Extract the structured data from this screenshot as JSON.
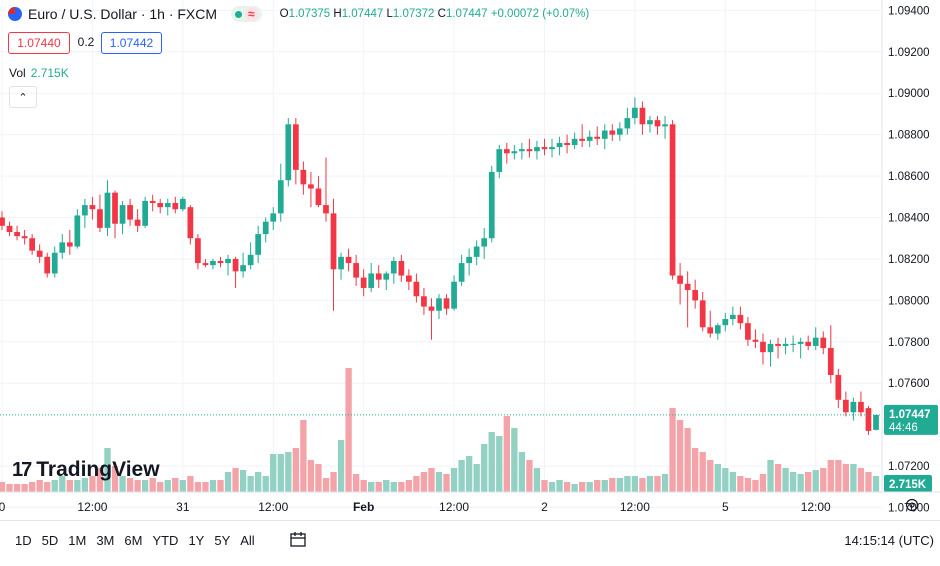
{
  "header": {
    "symbol_title": "Euro / U.S. Dollar · 1h · FXCM",
    "status_symbol": "≈",
    "ohlc": {
      "open_label": "O",
      "open": "1.07375",
      "high_label": "H",
      "high": "1.07447",
      "low_label": "L",
      "low": "1.07372",
      "close_label": "C",
      "close": "1.07447",
      "change": "+0.00072 (+0.07%)"
    }
  },
  "quote": {
    "bid": "1.07440",
    "spread": "0.2",
    "ask": "1.07442"
  },
  "volume": {
    "label": "Vol",
    "value": "2.715K"
  },
  "collapse_symbol": "⌃",
  "logo": {
    "mark": "17",
    "text": "TradingView"
  },
  "price_scale": {
    "last_price": "1.07447",
    "countdown": "44:46",
    "volume_tag": "2.715K"
  },
  "time_ranges": [
    "1D",
    "5D",
    "1M",
    "3M",
    "6M",
    "YTD",
    "1Y",
    "5Y",
    "All"
  ],
  "clock": "14:15:14 (UTC)",
  "colors": {
    "up": "#22ab94",
    "down": "#f23645",
    "up_vol": "#92d1c4",
    "down_vol": "#f4a3a8",
    "text": "#131722",
    "grid": "#f0f3fa"
  },
  "chart_data": {
    "type": "candlestick",
    "symbol": "Euro / U.S. Dollar",
    "interval": "1h",
    "source": "FXCM",
    "ylim": [
      1.07075,
      1.0945
    ],
    "y_ticks": [
      "1.09400",
      "1.09200",
      "1.09000",
      "1.08800",
      "1.08600",
      "1.08400",
      "1.08200",
      "1.08000",
      "1.07800",
      "1.07600",
      "1.07200",
      "1.07000"
    ],
    "x_ticks": [
      {
        "label": "0",
        "index": 0
      },
      {
        "label": "12:00",
        "index": 12
      },
      {
        "label": "31",
        "index": 24
      },
      {
        "label": "12:00",
        "index": 36
      },
      {
        "label": "Feb",
        "index": 48
      },
      {
        "label": "12:00",
        "index": 60
      },
      {
        "label": "2",
        "index": 72
      },
      {
        "label": "12:00",
        "index": 84
      },
      {
        "label": "5",
        "index": 96
      },
      {
        "label": "12:00",
        "index": 108
      }
    ],
    "ohlc": [
      [
        1.084,
        1.0843,
        1.0834,
        1.0836
      ],
      [
        1.0836,
        1.0838,
        1.0831,
        1.0833
      ],
      [
        1.0833,
        1.0836,
        1.0829,
        1.0831
      ],
      [
        1.0831,
        1.0834,
        1.0827,
        1.083
      ],
      [
        1.083,
        1.0832,
        1.0822,
        1.0824
      ],
      [
        1.0824,
        1.0827,
        1.0818,
        1.0821
      ],
      [
        1.0821,
        1.0823,
        1.0811,
        1.0813
      ],
      [
        1.0813,
        1.0826,
        1.0811,
        1.0823
      ],
      [
        1.0823,
        1.0832,
        1.082,
        1.0828
      ],
      [
        1.0828,
        1.0834,
        1.0822,
        1.0826
      ],
      [
        1.0826,
        1.0844,
        1.0825,
        1.0841
      ],
      [
        1.0841,
        1.0849,
        1.0835,
        1.0846
      ],
      [
        1.0846,
        1.085,
        1.0839,
        1.0844
      ],
      [
        1.0844,
        1.0851,
        1.0833,
        1.0835
      ],
      [
        1.0835,
        1.0858,
        1.0831,
        1.0852
      ],
      [
        1.0852,
        1.0853,
        1.083,
        1.0837
      ],
      [
        1.0837,
        1.0848,
        1.0832,
        1.0846
      ],
      [
        1.0846,
        1.0849,
        1.0836,
        1.0839
      ],
      [
        1.0839,
        1.0844,
        1.0833,
        1.0836
      ],
      [
        1.0836,
        1.085,
        1.0835,
        1.0848
      ],
      [
        1.0848,
        1.0851,
        1.0843,
        1.0847
      ],
      [
        1.0847,
        1.0849,
        1.0842,
        1.0845
      ],
      [
        1.0845,
        1.0849,
        1.0841,
        1.0847
      ],
      [
        1.0847,
        1.085,
        1.0842,
        1.0844
      ],
      [
        1.0844,
        1.085,
        1.0843,
        1.0849
      ],
      [
        1.0845,
        1.0846,
        1.0827,
        1.083
      ],
      [
        1.083,
        1.0832,
        1.0815,
        1.0818
      ],
      [
        1.0818,
        1.082,
        1.0816,
        1.0817
      ],
      [
        1.0817,
        1.082,
        1.0815,
        1.0819
      ],
      [
        1.0819,
        1.0821,
        1.0816,
        1.0818
      ],
      [
        1.0818,
        1.0822,
        1.0812,
        1.082
      ],
      [
        1.082,
        1.0821,
        1.0806,
        1.0814
      ],
      [
        1.0814,
        1.0823,
        1.0811,
        1.0817
      ],
      [
        1.0817,
        1.0828,
        1.0815,
        1.0822
      ],
      [
        1.0822,
        1.0836,
        1.0818,
        1.0832
      ],
      [
        1.0832,
        1.084,
        1.0828,
        1.0838
      ],
      [
        1.0838,
        1.0845,
        1.0834,
        1.0842
      ],
      [
        1.0842,
        1.0866,
        1.0838,
        1.0858
      ],
      [
        1.0858,
        1.0888,
        1.0855,
        1.0885
      ],
      [
        1.0885,
        1.0888,
        1.0856,
        1.0863
      ],
      [
        1.0863,
        1.0867,
        1.0851,
        1.0856
      ],
      [
        1.0856,
        1.0862,
        1.0845,
        1.0854
      ],
      [
        1.0854,
        1.086,
        1.0845,
        1.0846
      ],
      [
        1.0846,
        1.0869,
        1.0838,
        1.0842
      ],
      [
        1.0842,
        1.0849,
        1.0795,
        1.0815
      ],
      [
        1.0815,
        1.0823,
        1.081,
        1.0821
      ],
      [
        1.0821,
        1.0825,
        1.0814,
        1.0818
      ],
      [
        1.0818,
        1.0822,
        1.0807,
        1.0811
      ],
      [
        1.0811,
        1.0815,
        1.0802,
        1.0806
      ],
      [
        1.0806,
        1.0818,
        1.0804,
        1.0813
      ],
      [
        1.0813,
        1.0817,
        1.0806,
        1.081
      ],
      [
        1.081,
        1.0814,
        1.0805,
        1.0813
      ],
      [
        1.0813,
        1.0821,
        1.0808,
        1.0819
      ],
      [
        1.0819,
        1.0822,
        1.0809,
        1.0812
      ],
      [
        1.0812,
        1.0815,
        1.0805,
        1.0809
      ],
      [
        1.0809,
        1.0813,
        1.0799,
        1.0802
      ],
      [
        1.0802,
        1.0806,
        1.0793,
        1.0797
      ],
      [
        1.0797,
        1.0801,
        1.0781,
        1.0795
      ],
      [
        1.0795,
        1.0803,
        1.0791,
        1.0801
      ],
      [
        1.0801,
        1.0803,
        1.0793,
        1.0796
      ],
      [
        1.0796,
        1.0812,
        1.0795,
        1.0809
      ],
      [
        1.0809,
        1.0822,
        1.0807,
        1.0818
      ],
      [
        1.0818,
        1.0825,
        1.0812,
        1.0821
      ],
      [
        1.0821,
        1.0829,
        1.0817,
        1.0826
      ],
      [
        1.0826,
        1.0835,
        1.082,
        1.083
      ],
      [
        1.083,
        1.0865,
        1.0828,
        1.0862
      ],
      [
        1.0862,
        1.0875,
        1.0859,
        1.0873
      ],
      [
        1.0873,
        1.0876,
        1.0866,
        1.0871
      ],
      [
        1.0871,
        1.0875,
        1.0868,
        1.0872
      ],
      [
        1.0872,
        1.0876,
        1.0868,
        1.0873
      ],
      [
        1.0873,
        1.0878,
        1.0869,
        1.0872
      ],
      [
        1.0872,
        1.0877,
        1.0868,
        1.0874
      ],
      [
        1.0874,
        1.0878,
        1.087,
        1.0873
      ],
      [
        1.0873,
        1.0878,
        1.0869,
        1.0874
      ],
      [
        1.0874,
        1.0879,
        1.087,
        1.0876
      ],
      [
        1.0876,
        1.088,
        1.0871,
        1.0875
      ],
      [
        1.0875,
        1.0881,
        1.0873,
        1.0878
      ],
      [
        1.0878,
        1.0885,
        1.0874,
        1.0877
      ],
      [
        1.0877,
        1.0882,
        1.0874,
        1.0879
      ],
      [
        1.0879,
        1.0884,
        1.0875,
        1.0878
      ],
      [
        1.0878,
        1.0885,
        1.0873,
        1.0882
      ],
      [
        1.0882,
        1.0885,
        1.0877,
        1.088
      ],
      [
        1.088,
        1.0886,
        1.0877,
        1.0883
      ],
      [
        1.0883,
        1.0893,
        1.088,
        1.0888
      ],
      [
        1.0888,
        1.0898,
        1.0885,
        1.0893
      ],
      [
        1.0893,
        1.0896,
        1.088,
        1.0885
      ],
      [
        1.0885,
        1.0889,
        1.0881,
        1.0887
      ],
      [
        1.0887,
        1.0889,
        1.088,
        1.0884
      ],
      [
        1.0884,
        1.0889,
        1.0878,
        1.0885
      ],
      [
        1.0885,
        1.0887,
        1.081,
        1.0812
      ],
      [
        1.0812,
        1.0818,
        1.0798,
        1.0808
      ],
      [
        1.0808,
        1.0814,
        1.0787,
        1.0805
      ],
      [
        1.0805,
        1.081,
        1.0796,
        1.08
      ],
      [
        1.08,
        1.0804,
        1.0785,
        1.0787
      ],
      [
        1.0787,
        1.0795,
        1.0782,
        1.0784
      ],
      [
        1.0784,
        1.0789,
        1.0781,
        1.0788
      ],
      [
        1.0788,
        1.0794,
        1.0785,
        1.0791
      ],
      [
        1.0791,
        1.0797,
        1.0788,
        1.0793
      ],
      [
        1.0793,
        1.0797,
        1.0786,
        1.0789
      ],
      [
        1.0789,
        1.0792,
        1.0778,
        1.0781
      ],
      [
        1.0781,
        1.0786,
        1.0777,
        1.078
      ],
      [
        1.078,
        1.0784,
        1.0769,
        1.0775
      ],
      [
        1.0775,
        1.0781,
        1.0768,
        1.0779
      ],
      [
        1.0779,
        1.0782,
        1.0772,
        1.0778
      ],
      [
        1.0778,
        1.0782,
        1.0774,
        1.0779
      ],
      [
        1.0779,
        1.0783,
        1.0775,
        1.0779
      ],
      [
        1.0779,
        1.0782,
        1.0772,
        1.078
      ],
      [
        1.078,
        1.0783,
        1.0776,
        1.0778
      ],
      [
        1.0778,
        1.0787,
        1.0776,
        1.0782
      ],
      [
        1.0782,
        1.0785,
        1.0774,
        1.0777
      ],
      [
        1.0777,
        1.0788,
        1.076,
        1.0764
      ],
      [
        1.0764,
        1.0767,
        1.0748,
        1.0752
      ],
      [
        1.0752,
        1.0756,
        1.0744,
        1.0746
      ],
      [
        1.0746,
        1.0753,
        1.0742,
        1.0751
      ],
      [
        1.0751,
        1.0756,
        1.0744,
        1.0746
      ],
      [
        1.0748,
        1.0749,
        1.0735,
        1.0737
      ],
      [
        1.07375,
        1.07447,
        1.07372,
        1.07447
      ]
    ],
    "volume": [
      0.25,
      0.2,
      0.2,
      0.2,
      0.25,
      0.3,
      0.25,
      0.3,
      0.4,
      0.3,
      0.3,
      0.35,
      0.4,
      0.6,
      1.1,
      0.65,
      0.4,
      0.35,
      0.3,
      0.3,
      0.35,
      0.25,
      0.3,
      0.35,
      0.3,
      0.4,
      0.25,
      0.25,
      0.3,
      0.3,
      0.5,
      0.6,
      0.55,
      0.4,
      0.5,
      0.4,
      0.95,
      0.95,
      1.0,
      1.1,
      1.8,
      0.8,
      0.7,
      0.35,
      0.5,
      1.3,
      3.1,
      0.45,
      0.3,
      0.25,
      0.25,
      0.3,
      0.25,
      0.25,
      0.3,
      0.4,
      0.5,
      0.6,
      0.5,
      0.45,
      0.6,
      0.8,
      0.9,
      0.7,
      1.2,
      1.5,
      1.4,
      1.9,
      1.6,
      1.0,
      0.8,
      0.6,
      0.3,
      0.25,
      0.3,
      0.25,
      0.2,
      0.25,
      0.25,
      0.3,
      0.3,
      0.35,
      0.35,
      0.4,
      0.4,
      0.35,
      0.4,
      0.4,
      0.45,
      2.1,
      1.8,
      1.6,
      1.1,
      1.0,
      0.8,
      0.7,
      0.6,
      0.5,
      0.4,
      0.35,
      0.3,
      0.45,
      0.8,
      0.7,
      0.6,
      0.5,
      0.45,
      0.5,
      0.55,
      0.6,
      0.8,
      0.8,
      0.7,
      0.7,
      0.6,
      0.5,
      0.4
    ]
  }
}
